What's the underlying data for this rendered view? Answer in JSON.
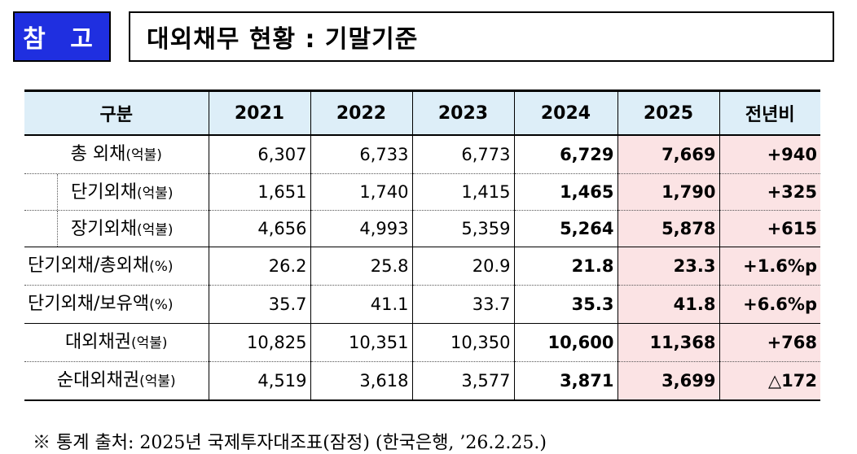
{
  "badge": "참 고",
  "title": "대외채무 현황 : 기말기준",
  "table": {
    "headers": [
      "구분",
      "2021",
      "2022",
      "2023",
      "2024",
      "2025",
      "전년비"
    ],
    "rows": [
      {
        "label": "총 외채",
        "unit": "(억불)",
        "values": [
          "6,307",
          "6,733",
          "6,773",
          "6,729",
          "7,669",
          "+940"
        ]
      },
      {
        "label": "단기외채",
        "unit": "(억불)",
        "values": [
          "1,651",
          "1,740",
          "1,415",
          "1,465",
          "1,790",
          "+325"
        ]
      },
      {
        "label": "장기외채",
        "unit": "(억불)",
        "values": [
          "4,656",
          "4,993",
          "5,359",
          "5,264",
          "5,878",
          "+615"
        ]
      },
      {
        "label": "단기외채/총외채",
        "unit": "(%)",
        "values": [
          "26.2",
          "25.8",
          "20.9",
          "21.8",
          "23.3",
          "+1.6%p"
        ]
      },
      {
        "label": "단기외채/보유액",
        "unit": "(%)",
        "values": [
          "35.7",
          "41.1",
          "33.7",
          "35.3",
          "41.8",
          "+6.6%p"
        ]
      },
      {
        "label": "대외채권",
        "unit": "(억불)",
        "values": [
          "10,825",
          "10,351",
          "10,350",
          "10,600",
          "11,368",
          "+768"
        ]
      },
      {
        "label": "순대외채권",
        "unit": "(억불)",
        "values": [
          "4,519",
          "3,618",
          "3,577",
          "3,871",
          "3,699",
          "△172"
        ]
      }
    ]
  },
  "note": "※ 통계 출처: 2025년 국제투자대조표(잠정) (한국은행, ’26.2.25.)",
  "colors": {
    "badge_bg": "#1f2fe0",
    "header_bg": "#ddeef8",
    "highlight_bg": "#fbe3e4"
  }
}
